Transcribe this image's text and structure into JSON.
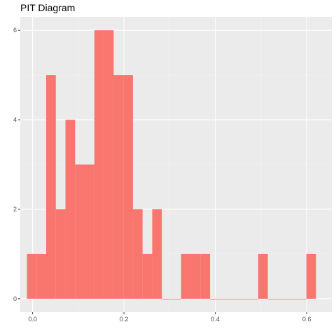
{
  "chart_data": {
    "type": "bar",
    "title": "PIT Diagram",
    "xlabel": "",
    "ylabel": "",
    "xlim": [
      -0.027,
      0.655
    ],
    "ylim": [
      -0.3,
      6.3
    ],
    "x_ticks": [
      0.0,
      0.2,
      0.4,
      0.6
    ],
    "x_tick_labels": [
      "0.0",
      "0.2",
      "0.4",
      "0.6"
    ],
    "y_ticks": [
      0,
      2,
      4,
      6
    ],
    "y_tick_labels": [
      "0",
      "2",
      "4",
      "6"
    ],
    "grid": true,
    "bin_width": 0.0211,
    "bins": [
      {
        "x0": -0.0125,
        "count": 1
      },
      {
        "x0": 0.0086,
        "count": 1
      },
      {
        "x0": 0.0297,
        "count": 5
      },
      {
        "x0": 0.0508,
        "count": 2
      },
      {
        "x0": 0.0719,
        "count": 4
      },
      {
        "x0": 0.093,
        "count": 3
      },
      {
        "x0": 0.1141,
        "count": 3
      },
      {
        "x0": 0.1352,
        "count": 6
      },
      {
        "x0": 0.1563,
        "count": 6
      },
      {
        "x0": 0.1774,
        "count": 5
      },
      {
        "x0": 0.1985,
        "count": 5
      },
      {
        "x0": 0.2196,
        "count": 2
      },
      {
        "x0": 0.2407,
        "count": 1
      },
      {
        "x0": 0.2618,
        "count": 2
      },
      {
        "x0": 0.2829,
        "count": 0
      },
      {
        "x0": 0.304,
        "count": 0
      },
      {
        "x0": 0.3251,
        "count": 1
      },
      {
        "x0": 0.3462,
        "count": 1
      },
      {
        "x0": 0.3673,
        "count": 1
      },
      {
        "x0": 0.3884,
        "count": 0
      },
      {
        "x0": 0.4095,
        "count": 0
      },
      {
        "x0": 0.4306,
        "count": 0
      },
      {
        "x0": 0.4517,
        "count": 0
      },
      {
        "x0": 0.4728,
        "count": 0
      },
      {
        "x0": 0.4939,
        "count": 1
      },
      {
        "x0": 0.515,
        "count": 0
      },
      {
        "x0": 0.5361,
        "count": 0
      },
      {
        "x0": 0.5572,
        "count": 0
      },
      {
        "x0": 0.5783,
        "count": 0
      },
      {
        "x0": 0.5994,
        "count": 1
      }
    ],
    "colors": {
      "bar": "#F8766D",
      "panel": "#EBEBEB",
      "grid_major": "#FFFFFF",
      "grid_minor": "#F5F5F5",
      "text": "#4D4D4D",
      "tick": "#333333"
    }
  }
}
